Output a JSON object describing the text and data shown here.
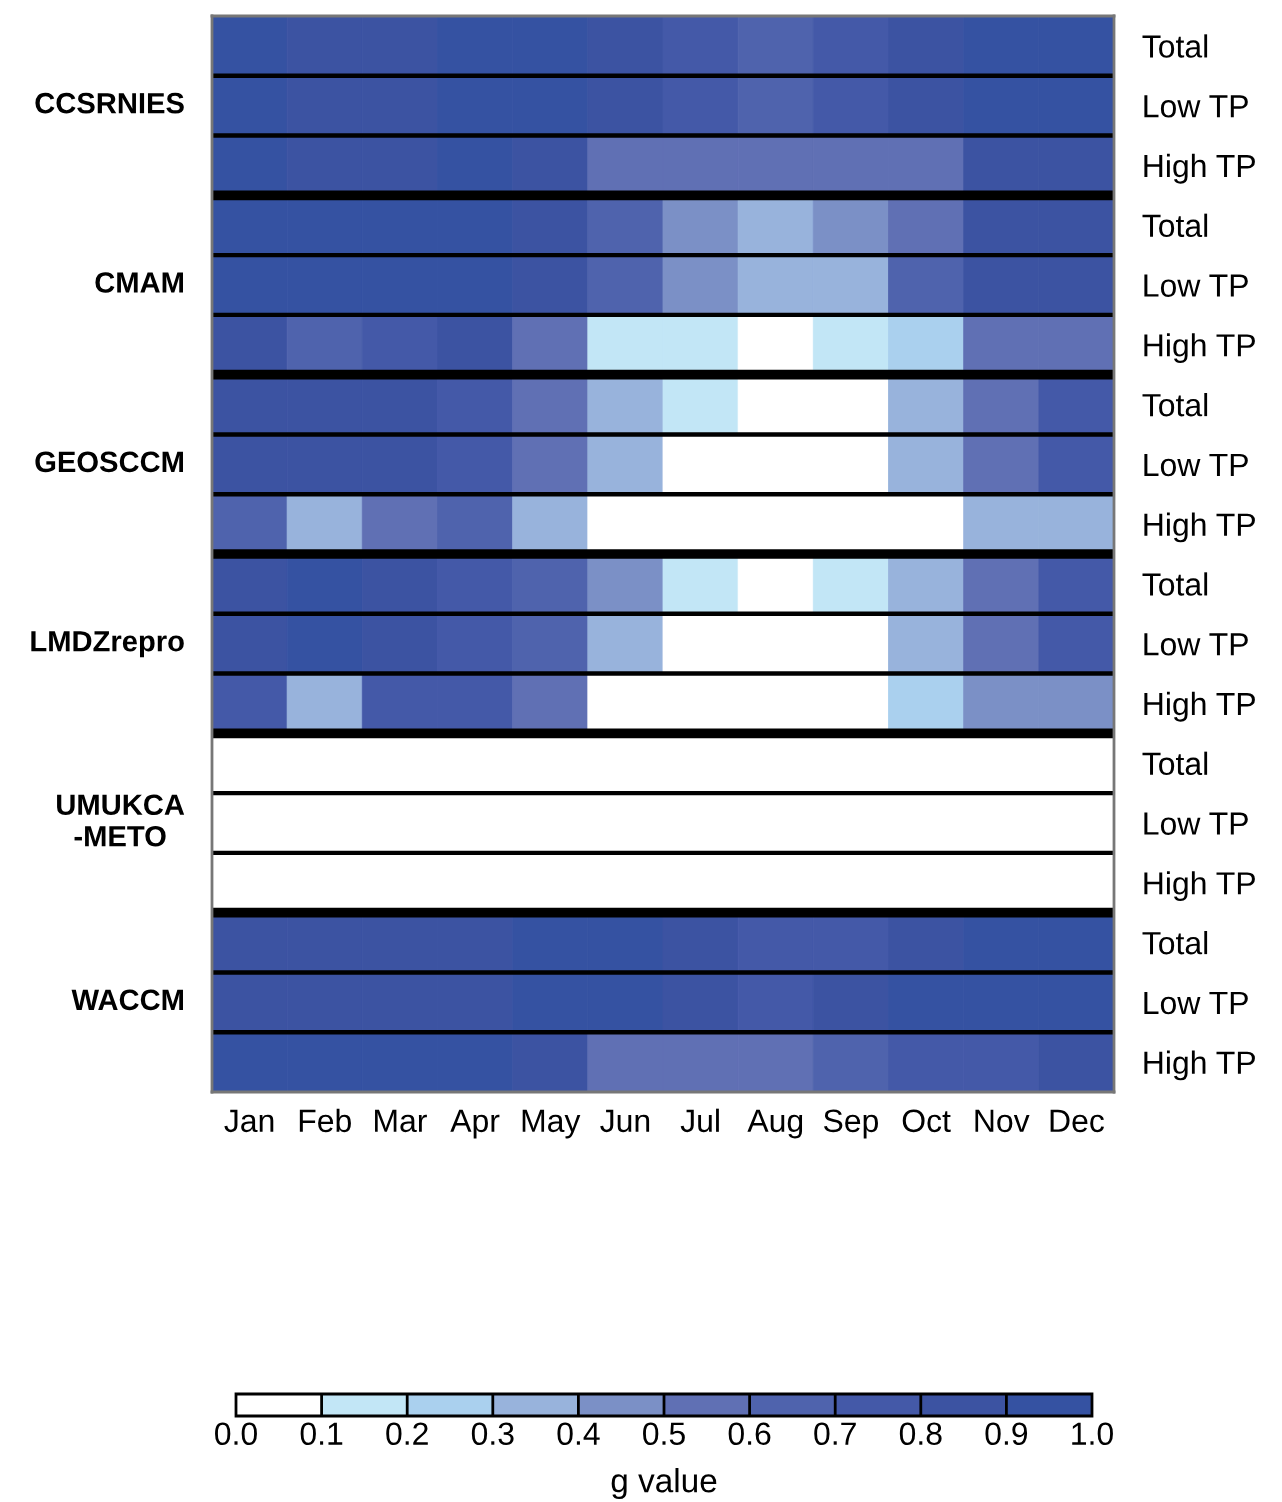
{
  "chart_data": {
    "type": "heatmap",
    "clabel": "g value",
    "categories": [
      "Jan",
      "Feb",
      "Mar",
      "Apr",
      "May",
      "Jun",
      "Jul",
      "Aug",
      "Sep",
      "Oct",
      "Nov",
      "Dec"
    ],
    "y_categories": [
      "Total",
      "Low TP",
      "High TP",
      "Total",
      "Low TP",
      "High TP",
      "Total",
      "Low TP",
      "High TP",
      "Total",
      "Low TP",
      "High TP",
      "Total",
      "Low TP",
      "High TP",
      "Total",
      "Low TP",
      "High TP"
    ],
    "annotations": [
      "CCSRNIES",
      "CMAM",
      "GEOSCCM",
      "LMDZrepro",
      "UMUKCA\n-METO",
      "WACCM"
    ],
    "cells": [
      [
        0.95,
        0.85,
        0.85,
        0.95,
        0.95,
        0.85,
        0.75,
        0.65,
        0.75,
        0.85,
        0.95,
        0.95
      ],
      [
        0.95,
        0.85,
        0.85,
        0.95,
        0.95,
        0.85,
        0.75,
        0.65,
        0.75,
        0.85,
        0.95,
        0.95
      ],
      [
        0.95,
        0.85,
        0.85,
        0.95,
        0.85,
        0.55,
        0.55,
        0.55,
        0.55,
        0.55,
        0.85,
        0.85
      ],
      [
        0.95,
        0.95,
        0.95,
        0.95,
        0.85,
        0.65,
        0.45,
        0.35,
        0.45,
        0.55,
        0.85,
        0.85
      ],
      [
        0.95,
        0.95,
        0.95,
        0.95,
        0.85,
        0.65,
        0.45,
        0.35,
        0.35,
        0.65,
        0.85,
        0.85
      ],
      [
        0.85,
        0.65,
        0.75,
        0.85,
        0.55,
        0.15,
        0.15,
        0.05,
        0.15,
        0.25,
        0.55,
        0.55
      ],
      [
        0.85,
        0.85,
        0.85,
        0.75,
        0.55,
        0.35,
        0.15,
        0.05,
        0.05,
        0.35,
        0.55,
        0.75
      ],
      [
        0.85,
        0.85,
        0.85,
        0.75,
        0.55,
        0.35,
        0.05,
        0.05,
        0.05,
        0.35,
        0.55,
        0.75
      ],
      [
        0.65,
        0.35,
        0.55,
        0.65,
        0.35,
        0.05,
        0.05,
        0.05,
        0.05,
        0.05,
        0.35,
        0.35
      ],
      [
        0.85,
        0.95,
        0.85,
        0.75,
        0.65,
        0.45,
        0.15,
        0.05,
        0.15,
        0.35,
        0.55,
        0.75
      ],
      [
        0.85,
        0.95,
        0.85,
        0.75,
        0.65,
        0.35,
        0.05,
        0.05,
        0.05,
        0.35,
        0.55,
        0.75
      ],
      [
        0.75,
        0.35,
        0.75,
        0.75,
        0.55,
        0.05,
        0.05,
        0.05,
        0.05,
        0.25,
        0.45,
        0.45
      ],
      [
        0.05,
        0.05,
        0.05,
        0.05,
        0.05,
        0.05,
        0.05,
        0.05,
        0.05,
        0.05,
        0.05,
        0.05
      ],
      [
        0.05,
        0.05,
        0.05,
        0.05,
        0.05,
        0.05,
        0.05,
        0.05,
        0.05,
        0.05,
        0.05,
        0.05
      ],
      [
        0.05,
        0.05,
        0.05,
        0.05,
        0.05,
        0.05,
        0.05,
        0.05,
        0.05,
        0.05,
        0.05,
        0.05
      ],
      [
        0.85,
        0.85,
        0.85,
        0.85,
        0.95,
        0.95,
        0.85,
        0.75,
        0.75,
        0.85,
        0.95,
        0.95
      ],
      [
        0.85,
        0.85,
        0.85,
        0.85,
        0.95,
        0.95,
        0.85,
        0.75,
        0.85,
        0.95,
        0.95,
        0.95
      ],
      [
        0.95,
        0.95,
        0.95,
        0.95,
        0.85,
        0.55,
        0.55,
        0.55,
        0.65,
        0.75,
        0.75,
        0.85
      ]
    ],
    "clim": [
      0,
      1
    ],
    "cticks": [
      {
        "value": 0,
        "label": "0.0"
      },
      {
        "value": 0.1,
        "label": "0.1"
      },
      {
        "value": 0.2,
        "label": "0.2"
      },
      {
        "value": 0.3,
        "label": "0.3"
      },
      {
        "value": 0.4,
        "label": "0.4"
      },
      {
        "value": 0.5,
        "label": "0.5"
      },
      {
        "value": 0.6,
        "label": "0.6"
      },
      {
        "value": 0.7,
        "label": "0.7"
      },
      {
        "value": 0.8,
        "label": "0.8"
      },
      {
        "value": 0.9,
        "label": "0.9"
      },
      {
        "value": 1,
        "label": "1.0"
      }
    ]
  }
}
